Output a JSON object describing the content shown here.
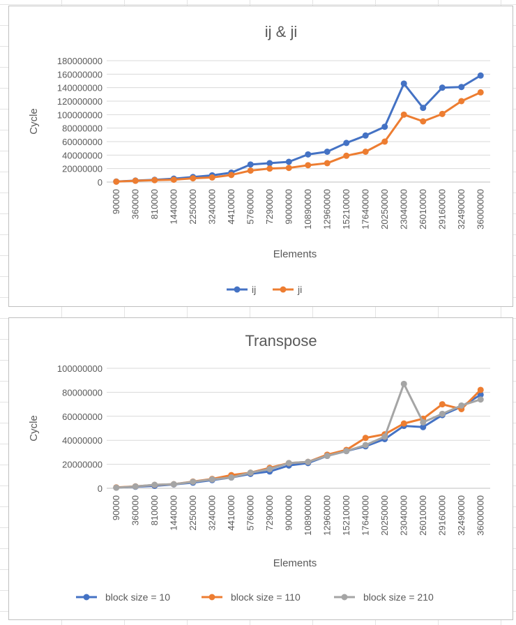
{
  "chart_data": [
    {
      "type": "line",
      "title": "ij & ji",
      "xlabel": "Elements",
      "ylabel": "Cycle",
      "ylim": [
        0,
        180000000
      ],
      "yticks": [
        "0",
        "20000000",
        "40000000",
        "60000000",
        "80000000",
        "100000000",
        "120000000",
        "140000000",
        "160000000",
        "180000000"
      ],
      "categories": [
        "90000",
        "360000",
        "810000",
        "1440000",
        "2250000",
        "3240000",
        "4410000",
        "5760000",
        "7290000",
        "9000000",
        "10890000",
        "12960000",
        "15210000",
        "17640000",
        "20250000",
        "23040000",
        "26010000",
        "29160000",
        "32490000",
        "36000000"
      ],
      "legend_position": "bottom",
      "grid": true,
      "series": [
        {
          "name": "ij",
          "color": "#4472c4",
          "values": [
            800000,
            2200000,
            3300000,
            5000000,
            7500000,
            10000000,
            14000000,
            26000000,
            28000000,
            30000000,
            41000000,
            45000000,
            58000000,
            69000000,
            82000000,
            146000000,
            110000000,
            140000000,
            141000000,
            158000000
          ]
        },
        {
          "name": "ji",
          "color": "#ed7d31",
          "values": [
            600000,
            1900000,
            2800000,
            3500000,
            5600000,
            6800000,
            10500000,
            17000000,
            20000000,
            21000000,
            25000000,
            28000000,
            39000000,
            45000000,
            60000000,
            100000000,
            90000000,
            101000000,
            120000000,
            133000000
          ]
        }
      ]
    },
    {
      "type": "line",
      "title": "Transpose",
      "xlabel": "Elements",
      "ylabel": "Cycle",
      "ylim": [
        0,
        100000000
      ],
      "yticks": [
        "0",
        "20000000",
        "40000000",
        "60000000",
        "80000000",
        "100000000"
      ],
      "categories": [
        "90000",
        "360000",
        "810000",
        "1440000",
        "2250000",
        "3240000",
        "4410000",
        "5760000",
        "7290000",
        "9000000",
        "10890000",
        "12960000",
        "15210000",
        "17640000",
        "20250000",
        "23040000",
        "26010000",
        "29160000",
        "32490000",
        "36000000"
      ],
      "legend_position": "bottom",
      "grid": true,
      "series": [
        {
          "name": "block size = 10",
          "color": "#4472c4",
          "values": [
            600000,
            1300000,
            2000000,
            3200000,
            4700000,
            6800000,
            9000000,
            12000000,
            14000000,
            19000000,
            21000000,
            27000000,
            31000000,
            35000000,
            41000000,
            52000000,
            51000000,
            61000000,
            68000000,
            78000000
          ]
        },
        {
          "name": "block size = 110",
          "color": "#ed7d31",
          "values": [
            700000,
            1600000,
            2800000,
            3400000,
            5600000,
            7800000,
            11000000,
            13000000,
            17000000,
            21000000,
            22000000,
            28000000,
            32000000,
            42000000,
            45000000,
            54000000,
            58000000,
            70000000,
            66000000,
            82000000
          ]
        },
        {
          "name": "block size = 210",
          "color": "#a5a5a5",
          "values": [
            500000,
            1500000,
            2900000,
            3400000,
            5400000,
            7400000,
            9000000,
            13000000,
            16000000,
            21000000,
            22000000,
            27000000,
            31000000,
            36000000,
            43000000,
            87000000,
            55000000,
            62000000,
            69000000,
            74000000
          ]
        }
      ]
    }
  ]
}
